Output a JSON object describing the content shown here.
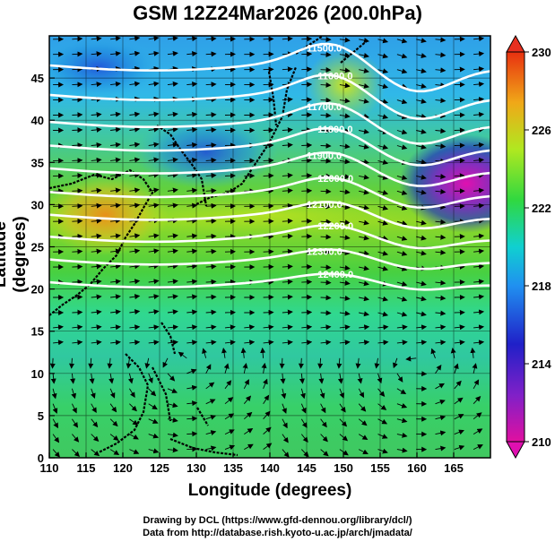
{
  "title": "GSM 12Z24Mar2026 (200.0hPa)",
  "axes": {
    "xlabel": "Longitude (degrees)",
    "ylabel": "Latitude  (degrees)",
    "x_ticks": [
      "110",
      "115",
      "120",
      "125",
      "130",
      "135",
      "140",
      "145",
      "150",
      "155",
      "160",
      "165"
    ],
    "y_ticks": [
      "0",
      "5",
      "10",
      "15",
      "20",
      "25",
      "30",
      "35",
      "40",
      "45"
    ],
    "x_range": [
      110,
      170
    ],
    "y_range": [
      0,
      50
    ]
  },
  "colorbar": {
    "labels": [
      "230",
      "226",
      "222",
      "218",
      "214",
      "210"
    ],
    "range": [
      210,
      230
    ],
    "colors": [
      "#e0109b",
      "#2020c8",
      "#2fa8f0",
      "#10e0c0",
      "#40d820",
      "#b8e820",
      "#f0a818",
      "#e83010"
    ]
  },
  "contours": {
    "labels": [
      "11500.0",
      "11600.0",
      "11700.0",
      "11800.0",
      "11900.0",
      "12000.0",
      "12100.0",
      "12200.0",
      "12300.0",
      "12400.0"
    ]
  },
  "credits": {
    "line1": "Drawing by DCL (https://www.gfd-dennou.org/library/dcl/)",
    "line2": "Data from http://database.rish.kyoto-u.ac.jp/arch/jmadata/"
  }
}
